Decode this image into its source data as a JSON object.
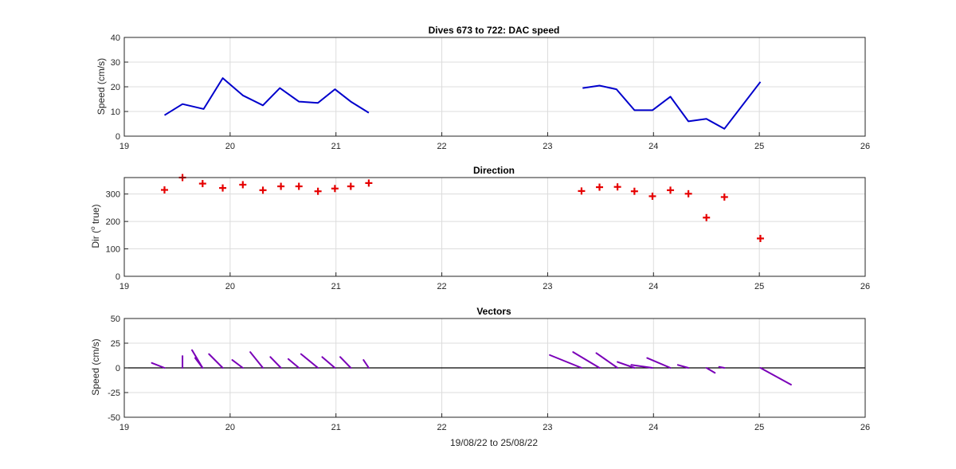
{
  "colors": {
    "speed_line": "#0000cc",
    "direction_marker": "#e60000",
    "vector_line": "#7a00b8",
    "axis": "#262626",
    "grid": "#dcdcdc"
  },
  "chart_data": [
    {
      "type": "line",
      "title": "Dives 673 to 722: DAC speed",
      "ylabel": "Speed (cm/s)",
      "xlim": [
        19,
        26
      ],
      "ylim": [
        0,
        40
      ],
      "xticks": [
        "19",
        "20",
        "21",
        "22",
        "23",
        "24",
        "25",
        "26"
      ],
      "yticks": [
        "0",
        "10",
        "20",
        "30",
        "40"
      ],
      "grid": true,
      "series": [
        {
          "segments": [
            {
              "x": [
                19.38,
                19.55,
                19.75,
                19.93,
                20.12,
                20.31,
                20.47,
                20.65,
                20.83,
                20.99,
                21.14,
                21.31
              ],
              "y": [
                8.5,
                13,
                11,
                23.5,
                16.5,
                12.5,
                19.5,
                14,
                13.5,
                19,
                14,
                9.5
              ]
            },
            {
              "x": [
                23.33,
                23.49,
                23.65,
                23.82,
                23.99,
                24.16,
                24.33,
                24.5,
                24.67,
                25.01
              ],
              "y": [
                19.5,
                20.5,
                19,
                10.5,
                10.5,
                16,
                6,
                7,
                3,
                22
              ]
            }
          ]
        }
      ]
    },
    {
      "type": "scatter",
      "title": "Direction",
      "ylabel_prefix": "Dir (",
      "ylabel_sup": "o",
      "ylabel_suffix": " true)",
      "xlim": [
        19,
        26
      ],
      "ylim": [
        0,
        360
      ],
      "xticks": [
        "19",
        "20",
        "21",
        "22",
        "23",
        "24",
        "25",
        "26"
      ],
      "yticks": [
        "0",
        "100",
        "200",
        "300"
      ],
      "ytick_values": [
        0,
        100,
        200,
        300
      ],
      "grid": true,
      "series": [
        {
          "marker": "+",
          "x": [
            19.38,
            19.55,
            19.74,
            19.93,
            20.12,
            20.31,
            20.48,
            20.65,
            20.83,
            20.99,
            21.14,
            21.31,
            23.32,
            23.49,
            23.66,
            23.82,
            23.99,
            24.16,
            24.33,
            24.5,
            24.67,
            25.01
          ],
          "y": [
            315,
            360,
            338,
            322,
            334,
            314,
            328,
            328,
            310,
            320,
            328,
            340,
            311,
            325,
            326,
            310,
            292,
            314,
            301,
            214,
            289,
            138
          ]
        }
      ]
    },
    {
      "type": "line",
      "subtype": "vectors",
      "title": "Vectors",
      "ylabel": "Speed (cm/s)",
      "xlabel": "19/08/22 to 25/08/22",
      "xlim": [
        19,
        26
      ],
      "ylim": [
        -50,
        50
      ],
      "xticks": [
        "19",
        "20",
        "21",
        "22",
        "23",
        "24",
        "25",
        "26"
      ],
      "yticks": [
        "-50",
        "-25",
        "0",
        "25",
        "50"
      ],
      "ytick_values": [
        -50,
        -25,
        0,
        25,
        50
      ],
      "grid": true,
      "zero_line": true,
      "vectors": [
        {
          "x": 19.38,
          "dx": -0.12,
          "dy": 5
        },
        {
          "x": 19.55,
          "dx": 0.0,
          "dy": 12
        },
        {
          "x": 19.74,
          "dx": -0.07,
          "dy": 10
        },
        {
          "x": 19.74,
          "dx": -0.1,
          "dy": 18
        },
        {
          "x": 19.93,
          "dx": -0.13,
          "dy": 14
        },
        {
          "x": 20.12,
          "dx": -0.1,
          "dy": 8
        },
        {
          "x": 20.31,
          "dx": -0.12,
          "dy": 16
        },
        {
          "x": 20.48,
          "dx": -0.1,
          "dy": 11
        },
        {
          "x": 20.65,
          "dx": -0.1,
          "dy": 9
        },
        {
          "x": 20.83,
          "dx": -0.16,
          "dy": 14
        },
        {
          "x": 20.99,
          "dx": -0.12,
          "dy": 11
        },
        {
          "x": 21.14,
          "dx": -0.1,
          "dy": 11
        },
        {
          "x": 21.31,
          "dx": -0.05,
          "dy": 8
        },
        {
          "x": 23.32,
          "dx": -0.3,
          "dy": 13
        },
        {
          "x": 23.49,
          "dx": -0.25,
          "dy": 16
        },
        {
          "x": 23.66,
          "dx": -0.2,
          "dy": 15
        },
        {
          "x": 23.82,
          "dx": -0.16,
          "dy": 6
        },
        {
          "x": 23.99,
          "dx": -0.2,
          "dy": 3
        },
        {
          "x": 24.16,
          "dx": -0.22,
          "dy": 10
        },
        {
          "x": 24.33,
          "dx": -0.1,
          "dy": 3
        },
        {
          "x": 24.5,
          "dx": 0.08,
          "dy": -5
        },
        {
          "x": 24.67,
          "dx": -0.05,
          "dy": 1
        },
        {
          "x": 25.01,
          "dx": 0.29,
          "dy": -17
        }
      ]
    }
  ]
}
